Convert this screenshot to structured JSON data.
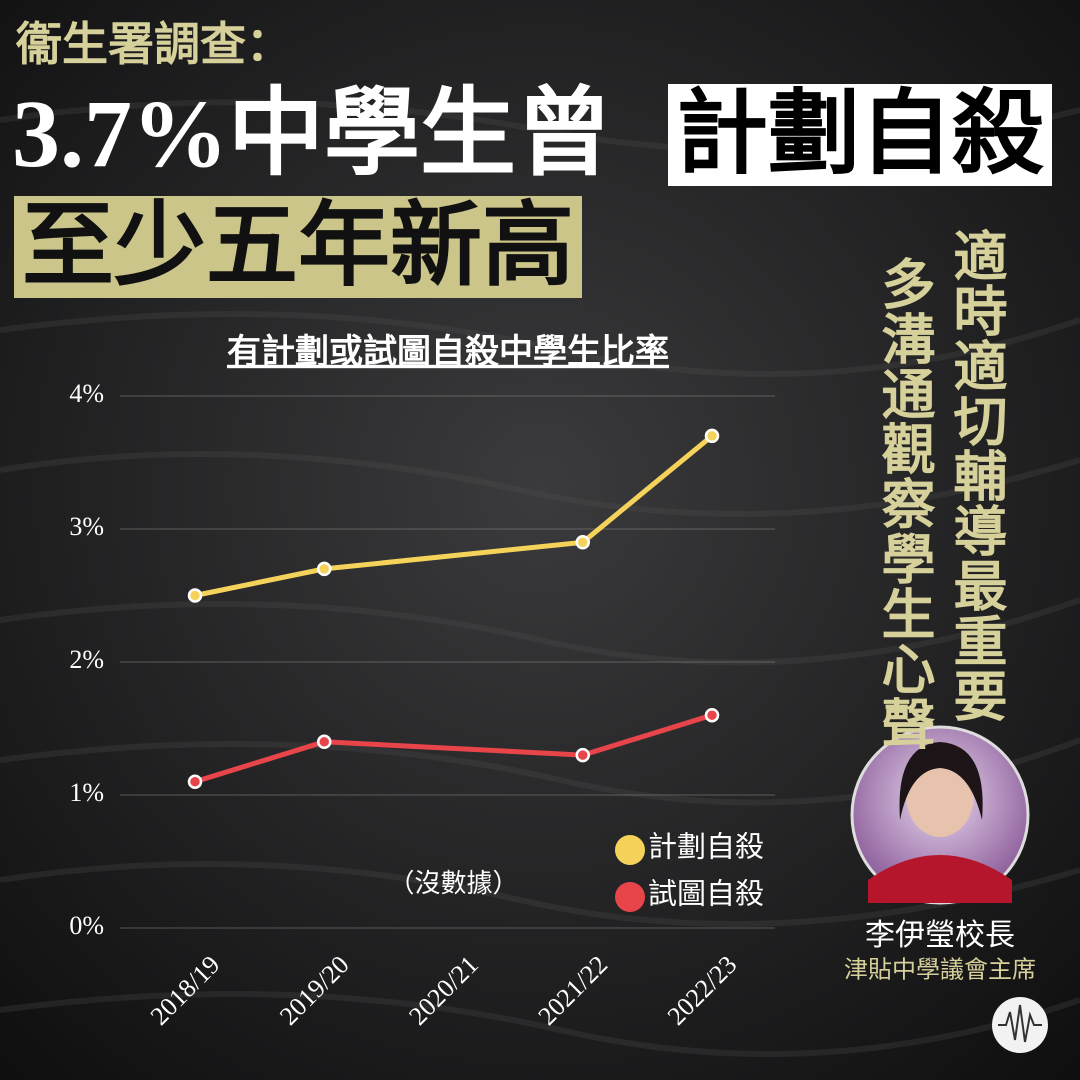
{
  "header": {
    "kicker": "衞生署調查：",
    "headline": "3.7%中學生曾",
    "highlight": "計劃自殺",
    "subheadline": "至少五年新高"
  },
  "chart_data": {
    "type": "line",
    "title": "有計劃或試圖自殺中學生比率",
    "categories": [
      "2018/19",
      "2019/20",
      "2020/21",
      "2021/22",
      "2022/23"
    ],
    "series": [
      {
        "name": "計劃自殺",
        "color": "#f5d35a",
        "x": [
          "2018/19",
          "2019/20",
          "2021/22",
          "2022/23"
        ],
        "values": [
          2.5,
          2.7,
          2.9,
          3.7
        ]
      },
      {
        "name": "試圖自殺",
        "color": "#e8454a",
        "x": [
          "2018/19",
          "2019/20",
          "2021/22",
          "2022/23"
        ],
        "values": [
          1.1,
          1.4,
          1.3,
          1.6
        ]
      }
    ],
    "ylim": [
      0,
      4
    ],
    "yticks": [
      {
        "value": 0,
        "label": "0%"
      },
      {
        "value": 1,
        "label": "1%"
      },
      {
        "value": 2,
        "label": "2%"
      },
      {
        "value": 3,
        "label": "3%"
      },
      {
        "value": 4,
        "label": "4%"
      }
    ],
    "grid": true,
    "annotations": [
      {
        "text": "（沒數據）",
        "x": "2020/21"
      }
    ]
  },
  "sidebar": {
    "quotes": [
      "適時適切輔導最重要",
      "多溝通觀察學生心聲"
    ],
    "person": {
      "name": "李伊瑩校長",
      "role": "津貼中學議會主席"
    }
  }
}
